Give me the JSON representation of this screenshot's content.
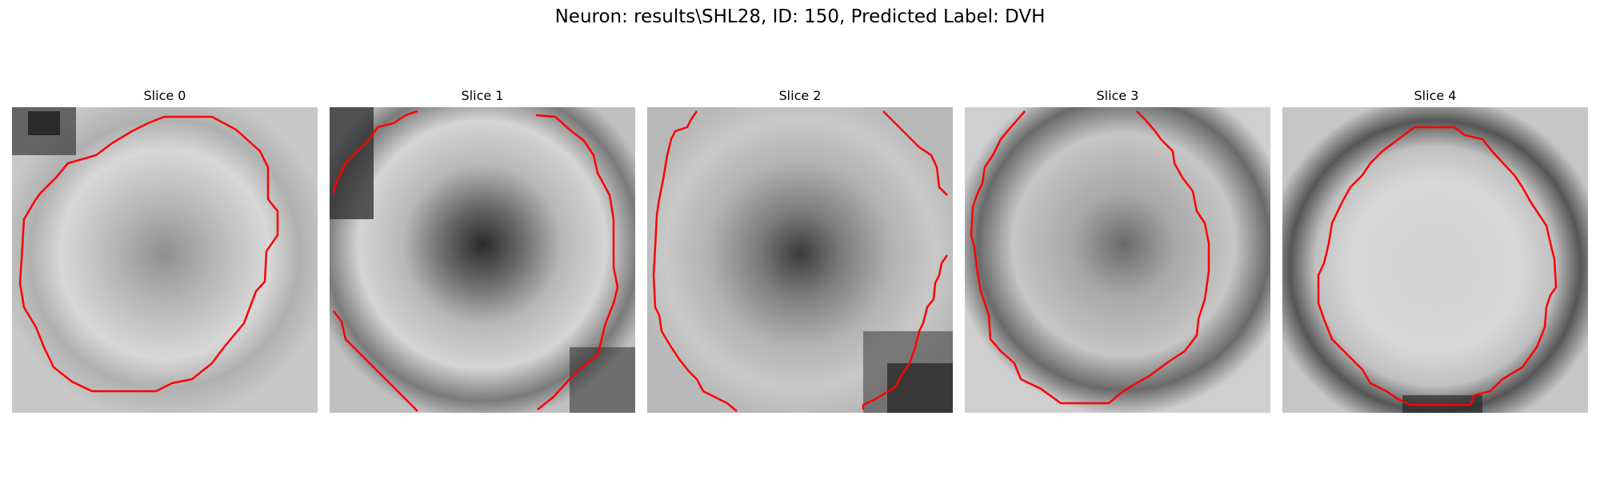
{
  "figure": {
    "title": "Neuron: results\\SHL28, ID: 150, Predicted Label: DVH"
  },
  "panels": [
    {
      "title": "Slice 0"
    },
    {
      "title": "Slice 1"
    },
    {
      "title": "Slice 2"
    },
    {
      "title": "Slice 3"
    },
    {
      "title": "Slice 4"
    }
  ],
  "colors": {
    "contour": "#ff0000"
  }
}
